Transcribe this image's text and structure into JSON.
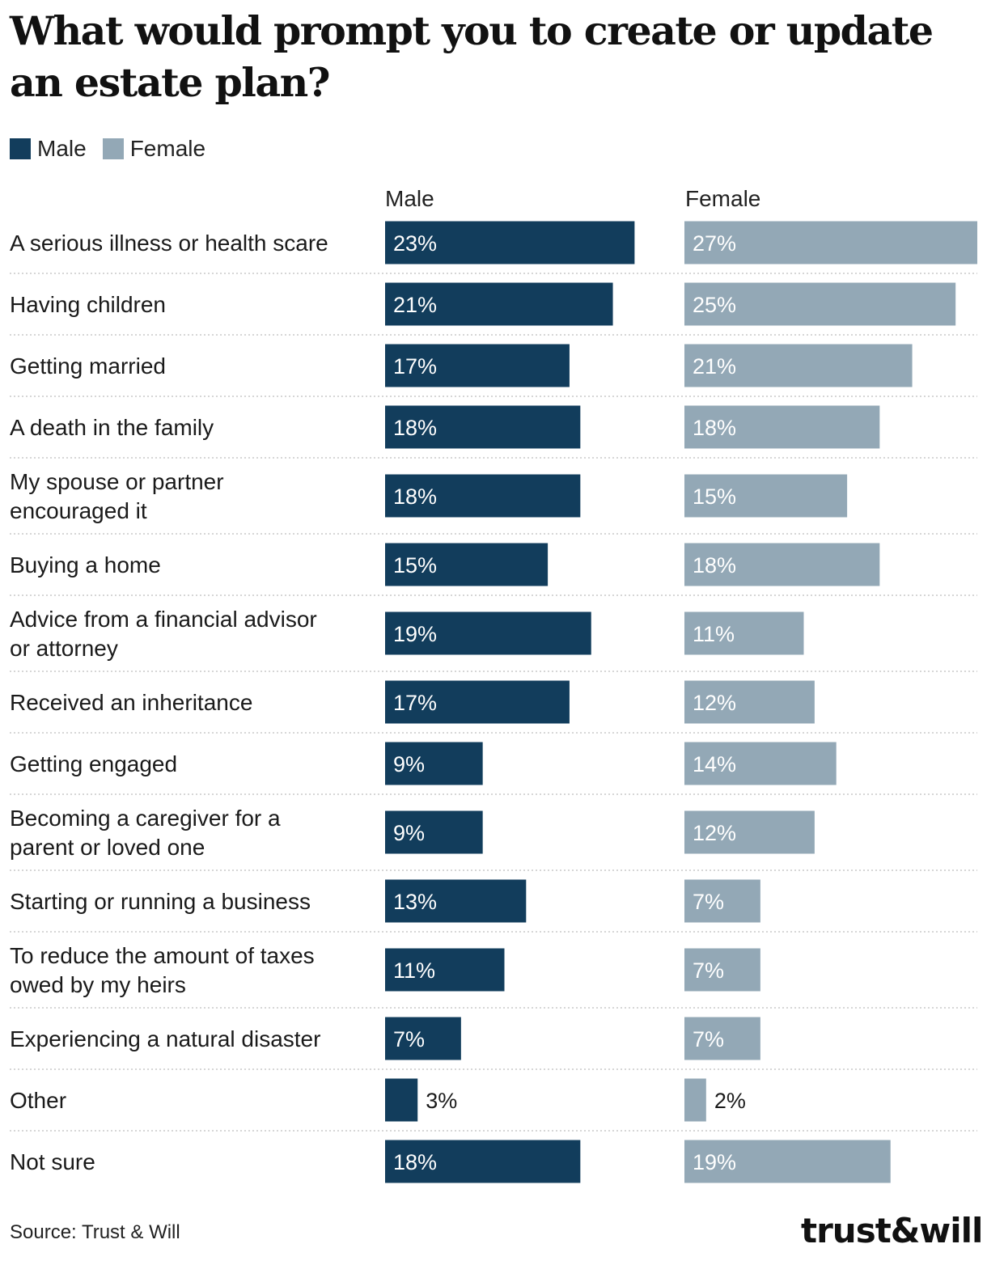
{
  "title": "What would prompt you to create or update an estate plan?",
  "legend": [
    {
      "label": "Male",
      "color": "#123d5c"
    },
    {
      "label": "Female",
      "color": "#93a8b6"
    }
  ],
  "column_headers": {
    "male": "Male",
    "female": "Female"
  },
  "source": "Source: Trust & Will",
  "logo": "trust&will",
  "chart_data": {
    "type": "bar",
    "orientation": "horizontal",
    "title": "What would prompt you to create or update an estate plan?",
    "categories": [
      [
        "A serious illness or health scare"
      ],
      [
        "Having children"
      ],
      [
        "Getting married"
      ],
      [
        "A death in the family"
      ],
      [
        "My spouse or partner",
        "encouraged it"
      ],
      [
        "Buying a home"
      ],
      [
        "Advice from a financial advisor",
        "or attorney"
      ],
      [
        "Received an inheritance"
      ],
      [
        "Getting engaged"
      ],
      [
        "Becoming a caregiver for a",
        "parent or loved one"
      ],
      [
        "Starting or running a business"
      ],
      [
        "To reduce the amount of taxes",
        "owed by my heirs"
      ],
      [
        "Experiencing a natural disaster"
      ],
      [
        "Other"
      ],
      [
        "Not sure"
      ]
    ],
    "series": [
      {
        "name": "Male",
        "color": "#123d5c",
        "values": [
          23,
          21,
          17,
          18,
          18,
          15,
          19,
          17,
          9,
          9,
          13,
          11,
          7,
          3,
          18
        ],
        "labels": [
          "23%",
          "21%",
          "17%",
          "18%",
          "18%",
          "15%",
          "19%",
          "17%",
          "9%",
          "9%",
          "13%",
          "11%",
          "7%",
          "3%",
          "18%"
        ]
      },
      {
        "name": "Female",
        "color": "#93a8b6",
        "values": [
          27,
          25,
          21,
          18,
          15,
          18,
          11,
          12,
          14,
          12,
          7,
          7,
          7,
          2,
          19
        ],
        "labels": [
          "27%",
          "25%",
          "21%",
          "18%",
          "15%",
          "18%",
          "11%",
          "12%",
          "14%",
          "12%",
          "7%",
          "7%",
          "7%",
          "2%",
          "19%"
        ]
      }
    ],
    "xlim": [
      0,
      27
    ],
    "unit": "%"
  }
}
